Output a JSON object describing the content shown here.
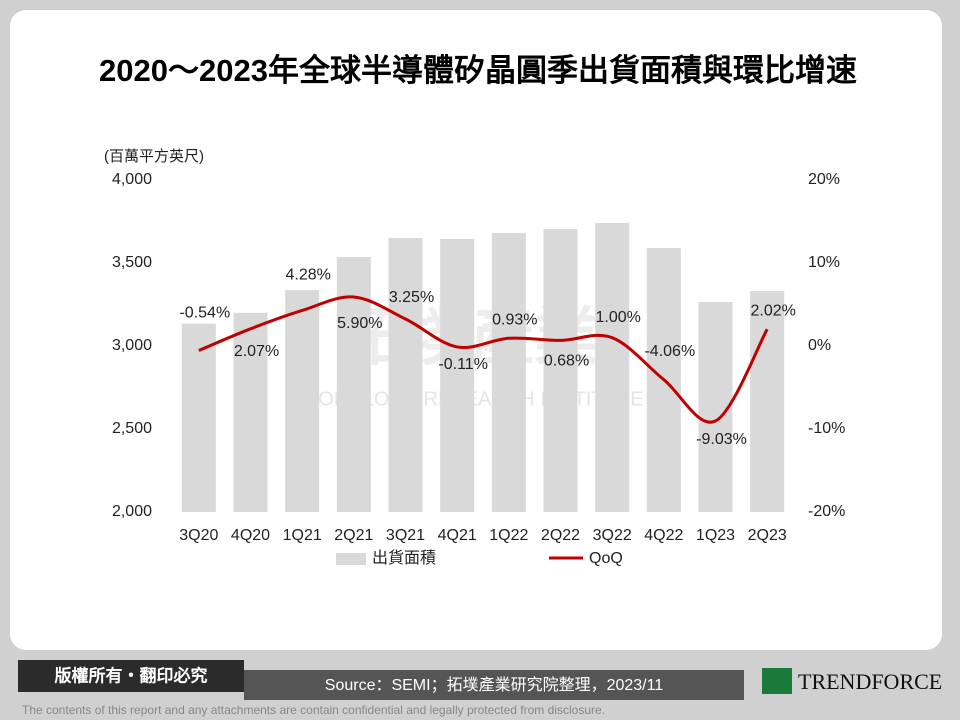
{
  "chart_data": {
    "type": "bar",
    "title": "2020～2023年全球半導體矽晶圓季出貨面積與環比增速",
    "y_label": "(百萬平方英尺)",
    "categories": [
      "3Q20",
      "4Q20",
      "1Q21",
      "2Q21",
      "3Q21",
      "4Q21",
      "1Q22",
      "2Q22",
      "3Q22",
      "4Q22",
      "1Q23",
      "2Q23"
    ],
    "series": [
      {
        "name": "出貨面積",
        "type": "bar",
        "color": "#d9d9d9",
        "values": [
          3135,
          3200,
          3337,
          3536,
          3651,
          3645,
          3681,
          3705,
          3741,
          3590,
          3265,
          3331
        ]
      },
      {
        "name": "QoQ",
        "type": "line",
        "axis": "y2",
        "color": "#c00000",
        "values": [
          -0.54,
          2.07,
          4.28,
          5.9,
          3.25,
          -0.11,
          0.93,
          0.68,
          1.0,
          -4.06,
          -9.03,
          2.02
        ],
        "value_labels": [
          "-0.54%",
          "2.07%",
          "4.28%",
          "5.90%",
          "3.25%",
          "-0.11%",
          "0.93%",
          "0.68%",
          "1.00%",
          "-4.06%",
          "-9.03%",
          "2.02%"
        ]
      }
    ],
    "ylim": [
      2000,
      4000
    ],
    "yticks": [
      {
        "value": 2000,
        "label": "2,000"
      },
      {
        "value": 2500,
        "label": "2,500"
      },
      {
        "value": 3000,
        "label": "3,000"
      },
      {
        "value": 3500,
        "label": "3,500"
      },
      {
        "value": 4000,
        "label": "4,000"
      }
    ],
    "y2lim": [
      -20,
      20
    ],
    "y2ticks": [
      {
        "value": -20,
        "label": "-20%"
      },
      {
        "value": -10,
        "label": "-10%"
      },
      {
        "value": 0,
        "label": "0%"
      },
      {
        "value": 10,
        "label": "10%"
      },
      {
        "value": 20,
        "label": "20%"
      }
    ],
    "grid": false,
    "legend": "bottom"
  },
  "watermark": {
    "cn": "拓墣產業",
    "en": "TOPOLOGY RESEARCH INSTITUTE"
  },
  "footer": {
    "rights": "版權所有・翻印必究",
    "source": "Source：SEMI；拓墣產業研究院整理，2023/11",
    "brand": "TRENDFORCE",
    "disclaimer": "The contents of this report and any attachments are contain confidential and legally protected from disclosure."
  }
}
